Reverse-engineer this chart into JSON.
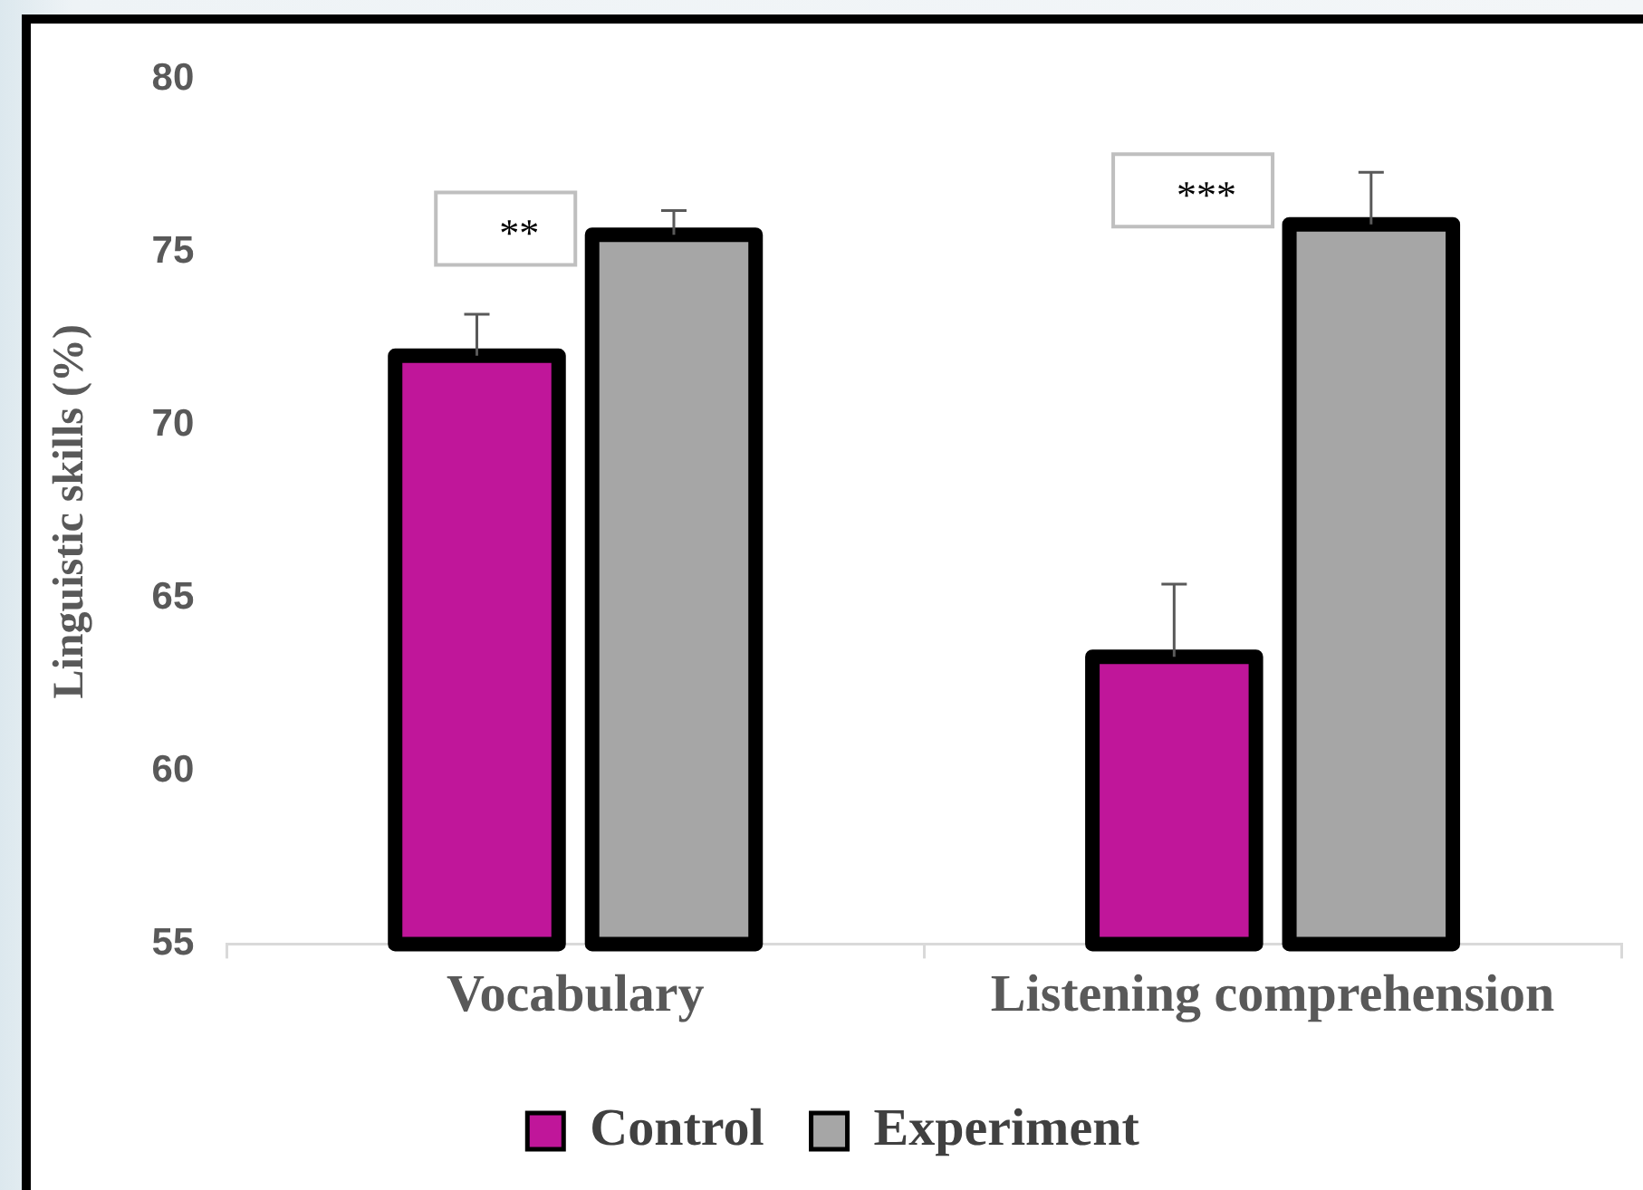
{
  "chart_data": {
    "type": "bar",
    "categories": [
      "Vocabulary",
      "Listening comprehension"
    ],
    "ylabel": "Linguistic skills (%)",
    "series": [
      {
        "name": "Control",
        "color": "#c0169a",
        "values": [
          72.0,
          63.3
        ],
        "errors": [
          [
            72.0,
            73.2
          ],
          [
            63.3,
            65.4
          ]
        ]
      },
      {
        "name": "Experiment",
        "color": "#a6a6a6",
        "values": [
          75.5,
          75.8
        ],
        "errors": [
          [
            75.5,
            76.2
          ],
          [
            75.8,
            77.3
          ]
        ]
      }
    ],
    "ylim": [
      55,
      80
    ],
    "yticks": [
      55,
      60,
      65,
      70,
      75,
      80
    ],
    "grid": false,
    "legend": "bottom",
    "annotations": [
      "**",
      "***"
    ]
  }
}
